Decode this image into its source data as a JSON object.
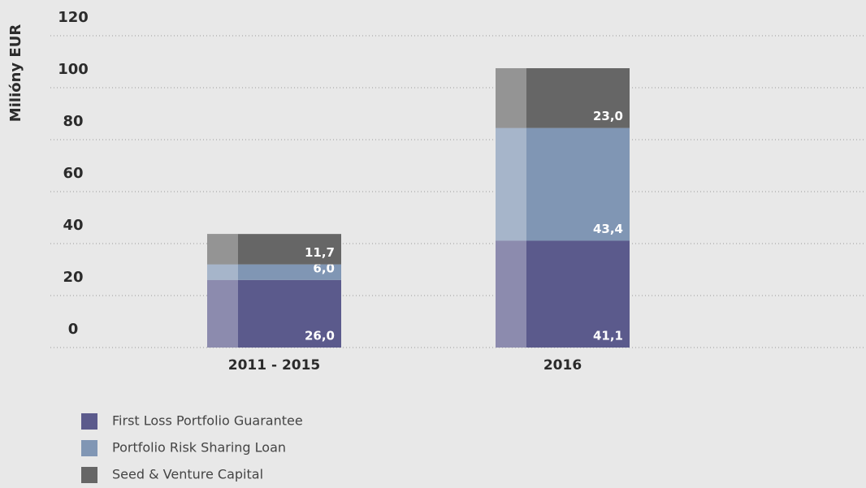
{
  "chart_data": {
    "type": "stacked_bar",
    "y_label": "Milióny EUR",
    "categories": [
      "2011 - 2015",
      "2016"
    ],
    "series": [
      {
        "name": "First Loss Portfolio Guarantee",
        "color": "#5b5a8c",
        "values": [
          26.0,
          41.1
        ],
        "value_labels": [
          "26,0",
          "41,1"
        ]
      },
      {
        "name": "Portfolio Risk Sharing Loan",
        "color": "#8096b4",
        "values": [
          6.0,
          43.4
        ],
        "value_labels": [
          "6,0",
          "43,4"
        ]
      },
      {
        "name": "Seed & Venture Capital",
        "color": "#666666",
        "values": [
          11.7,
          23.0
        ],
        "value_labels": [
          "11,7",
          "23,0"
        ]
      }
    ],
    "ylim": [
      0,
      120
    ],
    "yticks": [
      0,
      20,
      40,
      60,
      80,
      100,
      120
    ],
    "grid": true
  }
}
